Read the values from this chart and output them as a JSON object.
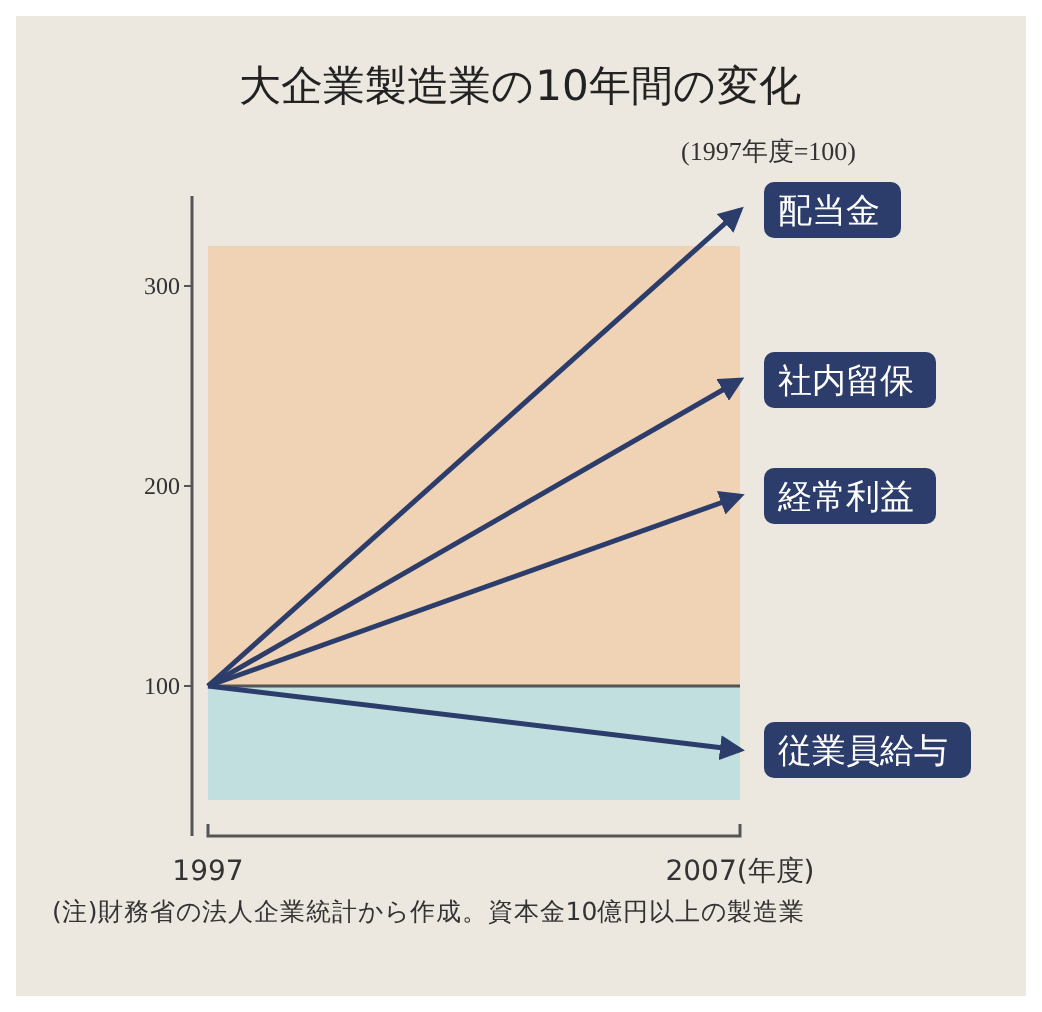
{
  "chart_data": {
    "type": "line",
    "title": "大企業製造業の10年間の変化",
    "subtitle": "(1997年度=100)",
    "x": [
      1997,
      2007
    ],
    "xlim": [
      1997,
      2007
    ],
    "xticks": [
      1997,
      {
        "value": 2007,
        "label": "2007(年度)"
      }
    ],
    "ylim": [
      25,
      345
    ],
    "yticks": [
      100,
      200,
      300
    ],
    "grid": false,
    "series": [
      {
        "name": "配当金",
        "color": "#2c3d6b",
        "values": [
          100,
          338
        ]
      },
      {
        "name": "社内留保",
        "color": "#2c3d6b",
        "values": [
          100,
          253
        ]
      },
      {
        "name": "経常利益",
        "color": "#2c3d6b",
        "values": [
          100,
          195
        ]
      },
      {
        "name": "従業員給与",
        "color": "#2c3d6b",
        "values": [
          100,
          68
        ]
      }
    ],
    "bands": [
      {
        "axis": "y",
        "from": 100,
        "to": 320,
        "color": "#efd3b4"
      },
      {
        "axis": "y",
        "from": 43,
        "to": 100,
        "color": "#c2dfe0"
      }
    ],
    "ref_lines": [
      {
        "axis": "y",
        "value": 100,
        "color": "#555555"
      }
    ],
    "annotations": [
      "(注)財務省の法人企業統計から作成。資本金10億円以上の製造業"
    ]
  }
}
